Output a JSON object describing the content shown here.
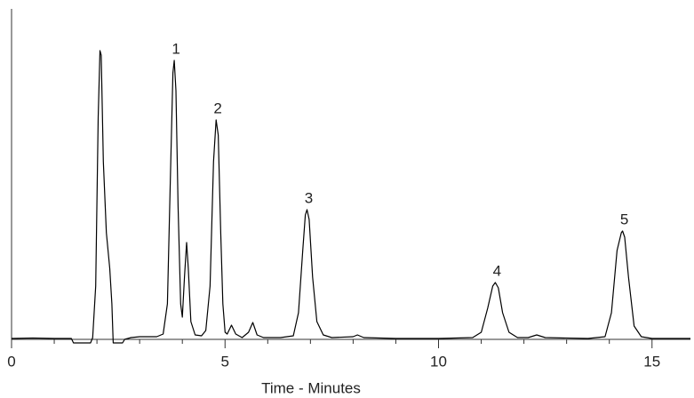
{
  "chart_data": {
    "type": "line",
    "xlabel": "Time - Minutes",
    "color": "#000000",
    "x": [
      0,
      0.5,
      1.0,
      1.4,
      1.45,
      1.85,
      1.9,
      1.97,
      2.03,
      2.07,
      2.1,
      2.15,
      2.22,
      2.3,
      2.35,
      2.38,
      2.6,
      2.65,
      2.8,
      3.0,
      3.4,
      3.55,
      3.65,
      3.72,
      3.78,
      3.81,
      3.85,
      3.9,
      3.96,
      4.0,
      4.05,
      4.1,
      4.14,
      4.2,
      4.3,
      4.45,
      4.55,
      4.65,
      4.73,
      4.79,
      4.84,
      4.9,
      4.95,
      5.0,
      5.05,
      5.15,
      5.25,
      5.4,
      5.55,
      5.65,
      5.75,
      5.9,
      6.3,
      6.6,
      6.72,
      6.82,
      6.88,
      6.92,
      6.97,
      7.05,
      7.15,
      7.3,
      7.5,
      8.0,
      8.1,
      8.25,
      9.0,
      10.0,
      10.8,
      11.0,
      11.15,
      11.27,
      11.33,
      11.4,
      11.5,
      11.65,
      11.85,
      12.1,
      12.3,
      12.5,
      13.5,
      13.9,
      14.05,
      14.18,
      14.28,
      14.31,
      14.36,
      14.45,
      14.58,
      14.75,
      15.0,
      15.9
    ],
    "values": [
      1,
      1.5,
      1,
      1,
      -4,
      -4,
      2,
      60,
      250,
      325,
      320,
      200,
      120,
      80,
      40,
      -4,
      -4,
      0,
      2,
      3,
      3,
      6,
      40,
      180,
      300,
      314,
      280,
      150,
      40,
      25,
      70,
      109,
      80,
      20,
      5,
      4,
      10,
      60,
      200,
      247,
      230,
      120,
      40,
      8,
      6,
      16,
      6,
      2,
      8,
      19,
      5,
      2,
      2,
      4,
      30,
      100,
      140,
      146,
      135,
      70,
      20,
      5,
      2,
      3,
      5,
      2,
      1,
      1,
      2,
      8,
      35,
      60,
      64,
      58,
      30,
      8,
      2,
      2,
      5,
      2,
      1,
      3,
      30,
      100,
      120,
      122,
      115,
      70,
      15,
      3,
      1,
      1
    ],
    "xlim": [
      0,
      15.9
    ],
    "ylim": [
      -5,
      372
    ],
    "xticks": [
      0,
      5,
      10,
      15
    ],
    "xminorticks": [
      1,
      2,
      3,
      4,
      6,
      7,
      8,
      9,
      11,
      12,
      13,
      14
    ],
    "annotations": [
      {
        "text": "1",
        "x": 3.81,
        "y": 314
      },
      {
        "text": "2",
        "x": 4.79,
        "y": 247
      },
      {
        "text": "3",
        "x": 6.92,
        "y": 146
      },
      {
        "text": "4",
        "x": 11.33,
        "y": 64
      },
      {
        "text": "5",
        "x": 14.31,
        "y": 122
      }
    ]
  }
}
